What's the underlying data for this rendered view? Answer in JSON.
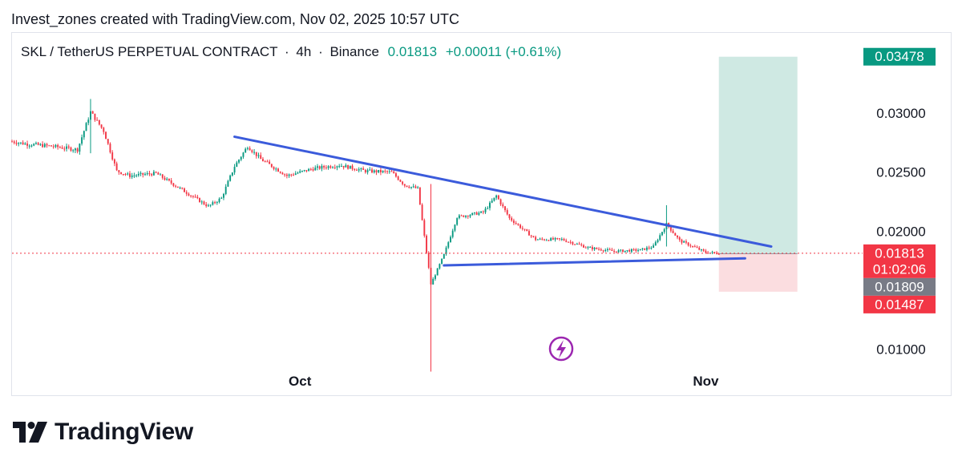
{
  "header": {
    "text": "Invest_zones created with TradingView.com, Nov 02, 2025 10:57 UTC"
  },
  "legend": {
    "symbol": "SKL / TetherUS PERPETUAL CONTRACT",
    "interval": "4h",
    "exchange": "Binance",
    "sep1": "·",
    "sep2": "·",
    "price": "0.01813",
    "change": "+0.00011 (+0.61%)"
  },
  "colors": {
    "up": "#089981",
    "down": "#f23645",
    "trendline": "#3b5bdb",
    "target_zone": "#cfe9e3",
    "stop_zone": "#fbdde0",
    "price_line": "#f23645"
  },
  "chart_data": {
    "type": "line",
    "subtype": "candlestick with trendlines and long-position tool",
    "title": "SKL / TetherUS PERPETUAL CONTRACT · 4h · Binance",
    "ylim": [
      0.008,
      0.0368
    ],
    "y_ticks": [
      "0.03000",
      "0.02500",
      "0.02000",
      "0.01000"
    ],
    "x_ticks": [
      {
        "label": "Oct",
        "date": "2025-10-01"
      },
      {
        "label": "Nov",
        "date": "2025-11-01"
      }
    ],
    "x_range": [
      "2025-09-09",
      "2025-11-12"
    ],
    "close_path": {
      "x": [
        "2025-09-09",
        "2025-09-10",
        "2025-09-12",
        "2025-09-14",
        "2025-09-15",
        "2025-09-16",
        "2025-09-17",
        "2025-09-18",
        "2025-09-20",
        "2025-09-22",
        "2025-09-24",
        "2025-09-25",
        "2025-09-26",
        "2025-09-27",
        "2025-09-28",
        "2025-09-30",
        "2025-10-02",
        "2025-10-04",
        "2025-10-06",
        "2025-10-08",
        "2025-10-09",
        "2025-10-10",
        "2025-10-11",
        "2025-10-12",
        "2025-10-13",
        "2025-10-15",
        "2025-10-16",
        "2025-10-17",
        "2025-10-19",
        "2025-10-21",
        "2025-10-23",
        "2025-10-25",
        "2025-10-27",
        "2025-10-28",
        "2025-10-29",
        "2025-10-30",
        "2025-11-01",
        "2025-11-02"
      ],
      "y": [
        0.0276,
        0.0274,
        0.0272,
        0.0269,
        0.0301,
        0.0285,
        0.0251,
        0.0247,
        0.0249,
        0.0235,
        0.0221,
        0.0228,
        0.0255,
        0.0272,
        0.0261,
        0.0247,
        0.0253,
        0.0256,
        0.0251,
        0.025,
        0.0239,
        0.0236,
        0.0155,
        0.018,
        0.0212,
        0.0216,
        0.023,
        0.0211,
        0.0193,
        0.0193,
        0.0186,
        0.0183,
        0.0184,
        0.0187,
        0.0206,
        0.0192,
        0.0182,
        0.01813
      ]
    },
    "extremes": [
      {
        "date": "2025-09-15",
        "high": 0.0312,
        "low": 0.0266
      },
      {
        "date": "2025-10-11",
        "high": 0.024,
        "low": 0.0081
      },
      {
        "date": "2025-10-29",
        "high": 0.0222,
        "low": 0.0187
      }
    ],
    "trendlines": [
      {
        "name": "descending resistance",
        "from": {
          "date": "2025-09-26",
          "price": 0.028
        },
        "to": {
          "date": "2025-11-06",
          "price": 0.0187
        }
      },
      {
        "name": "ascending support",
        "from": {
          "date": "2025-10-12",
          "price": 0.0171
        },
        "to": {
          "date": "2025-11-04",
          "price": 0.0177
        }
      }
    ],
    "position": {
      "type": "long",
      "start": "2025-11-02",
      "end": "2025-11-08",
      "entry": 0.01809,
      "target": 0.03478,
      "stop": 0.01487
    },
    "last_price": 0.01813,
    "price_labels": [
      {
        "price": 0.03478,
        "text": "0.03478",
        "color": "#089981"
      },
      {
        "price": 0.01813,
        "text": "0.01813",
        "sub": "01:02:06",
        "color": "#f23645"
      },
      {
        "price": 0.01809,
        "text": "0.01809",
        "color": "#787b86"
      },
      {
        "price": 0.01487,
        "text": "0.01487",
        "color": "#f23645"
      }
    ]
  },
  "logo": {
    "text": "TradingView"
  }
}
